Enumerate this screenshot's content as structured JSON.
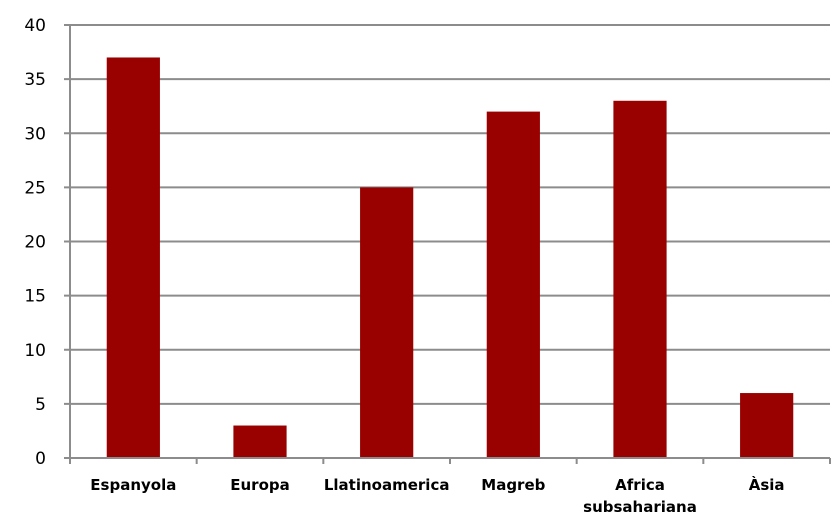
{
  "chart_data": {
    "type": "bar",
    "categories": [
      "Espanyola",
      "Europa",
      "Llatinoamerica",
      "Magreb",
      "Africa subsahariana",
      "Àsia"
    ],
    "category_lines": [
      [
        "Espanyola"
      ],
      [
        "Europa"
      ],
      [
        "Llatinoamerica"
      ],
      [
        "Magreb"
      ],
      [
        "Africa",
        "subsahariana"
      ],
      [
        "Àsia"
      ]
    ],
    "values": [
      37,
      3,
      25,
      32,
      33,
      6
    ],
    "ylim": [
      0,
      40
    ],
    "yticks": [
      "0",
      "5",
      "10",
      "15",
      "20",
      "25",
      "30",
      "35",
      "40"
    ],
    "grid": true,
    "legend": "none",
    "colors": {
      "bar": "#990000",
      "grid": "#8c8c8c",
      "axis": "#8c8c8c"
    }
  }
}
